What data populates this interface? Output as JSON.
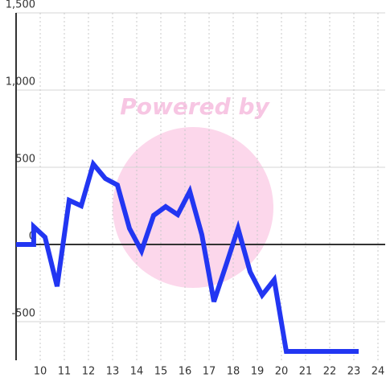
{
  "chart_data": {
    "type": "line",
    "watermark": "Powered by",
    "x": [
      9.0,
      9.73,
      9.73,
      10.2,
      10.7,
      11.2,
      11.7,
      12.2,
      12.7,
      13.2,
      13.7,
      14.2,
      14.7,
      15.2,
      15.7,
      16.2,
      16.7,
      17.2,
      17.7,
      18.2,
      18.7,
      19.2,
      19.7,
      20.2,
      20.7,
      21.2,
      21.7,
      22.2,
      22.7,
      23.2
    ],
    "series": [
      {
        "color": "#2236f2",
        "values": [
          0,
          0,
          115,
          47,
          -271,
          286,
          250,
          521,
          427,
          385,
          104,
          -42,
          188,
          245,
          193,
          344,
          63,
          -370,
          -135,
          104,
          -177,
          -328,
          -229,
          -693,
          -693,
          -693,
          -693,
          -693,
          -693,
          -693
        ]
      }
    ],
    "xlim": [
      9,
      24.3
    ],
    "xticks": [
      10,
      11,
      12,
      13,
      14,
      15,
      16,
      17,
      18,
      19,
      20,
      21,
      22,
      23,
      24
    ],
    "ylim": [
      -750,
      1500
    ],
    "yticks": [
      -500,
      0,
      500,
      {
        "value": 1000,
        "label": "1,000"
      },
      {
        "value": 1500,
        "label": "1,500"
      }
    ],
    "grid": true
  }
}
